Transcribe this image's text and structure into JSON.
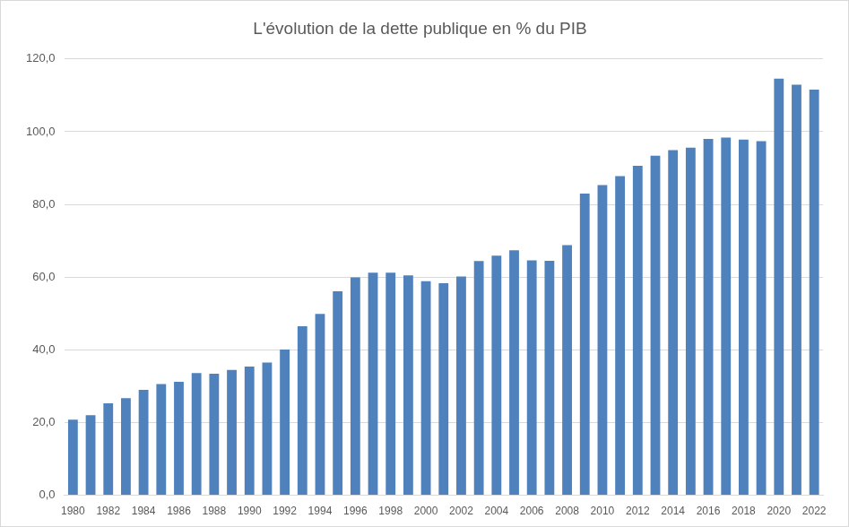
{
  "chart_data": {
    "type": "bar",
    "title": "L'évolution de la dette publique en % du PIB",
    "categories": [
      "1980",
      null,
      "1982",
      null,
      "1984",
      null,
      "1986",
      null,
      "1988",
      null,
      "1990",
      null,
      "1992",
      null,
      "1994",
      null,
      "1996",
      null,
      "1998",
      null,
      "2000",
      null,
      "2002",
      null,
      "2004",
      null,
      "2006",
      null,
      "2008",
      null,
      "2010",
      null,
      "2012",
      null,
      "2014",
      null,
      "2016",
      null,
      "2018",
      null,
      "2020",
      null,
      "2022"
    ],
    "values": [
      20.8,
      22.0,
      25.3,
      26.7,
      29.0,
      30.6,
      31.2,
      33.6,
      33.4,
      34.5,
      35.4,
      36.5,
      40.1,
      46.5,
      49.9,
      56.1,
      59.9,
      61.2,
      61.2,
      60.5,
      58.9,
      58.3,
      60.2,
      64.4,
      65.9,
      67.4,
      64.6,
      64.5,
      68.8,
      83.0,
      85.3,
      87.8,
      90.6,
      93.4,
      94.9,
      95.6,
      98.0,
      98.4,
      97.8,
      97.4,
      114.6,
      112.9,
      111.6
    ],
    "color": "#4f81bd",
    "ylim": [
      0,
      120
    ],
    "yticks": [
      {
        "value": 0,
        "label": "0,0"
      },
      {
        "value": 20,
        "label": "20,0"
      },
      {
        "value": 40,
        "label": "40,0"
      },
      {
        "value": 60,
        "label": "60,0"
      },
      {
        "value": 80,
        "label": "80,0"
      },
      {
        "value": 100,
        "label": "100,0"
      },
      {
        "value": 120,
        "label": "120,0"
      }
    ],
    "grid": true
  }
}
